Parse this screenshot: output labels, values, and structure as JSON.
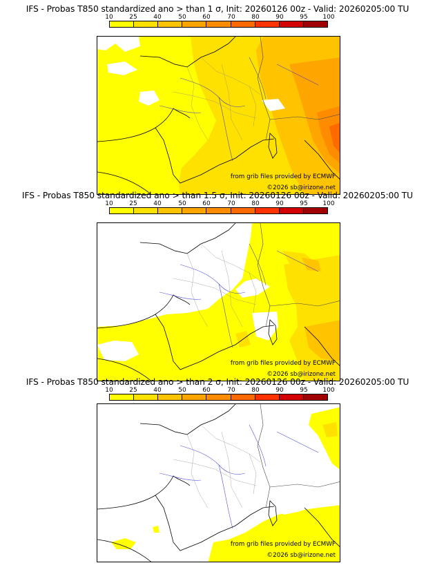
{
  "scale": {
    "labels": [
      "10",
      "25",
      "40",
      "50",
      "60",
      "70",
      "80",
      "90",
      "95",
      "100"
    ],
    "colors": [
      "#ffff00",
      "#ffe100",
      "#ffc300",
      "#ffa500",
      "#ff8c00",
      "#ff6a00",
      "#ff3200",
      "#d40000",
      "#a00000",
      "#6e0000"
    ]
  },
  "panels": [
    {
      "title": "IFS - Probas T850  standardized ano > than 1 σ, Init: 20260126 00z - Valid: 20260205:00 TU",
      "threshold": "1 σ",
      "source": "from grib files provided by ECMWF",
      "copyright": "©2026 sb@irizone.net"
    },
    {
      "title": "IFS - Probas T850  standardized ano > than 1.5 σ, Init: 20260126 00z - Valid: 20260205:00 TU",
      "threshold": "1.5 σ",
      "source": "from grib files provided by ECMWF",
      "copyright": "©2026 sb@irizone.net"
    },
    {
      "title": "IFS - Probas T850  standardized ano > than 2 σ, Init: 20260126 00z - Valid: 20260205:00 TU",
      "threshold": "2 σ",
      "source": "from grib files provided by ECMWF",
      "copyright": "©2026 sb@irizone.net"
    }
  ]
}
